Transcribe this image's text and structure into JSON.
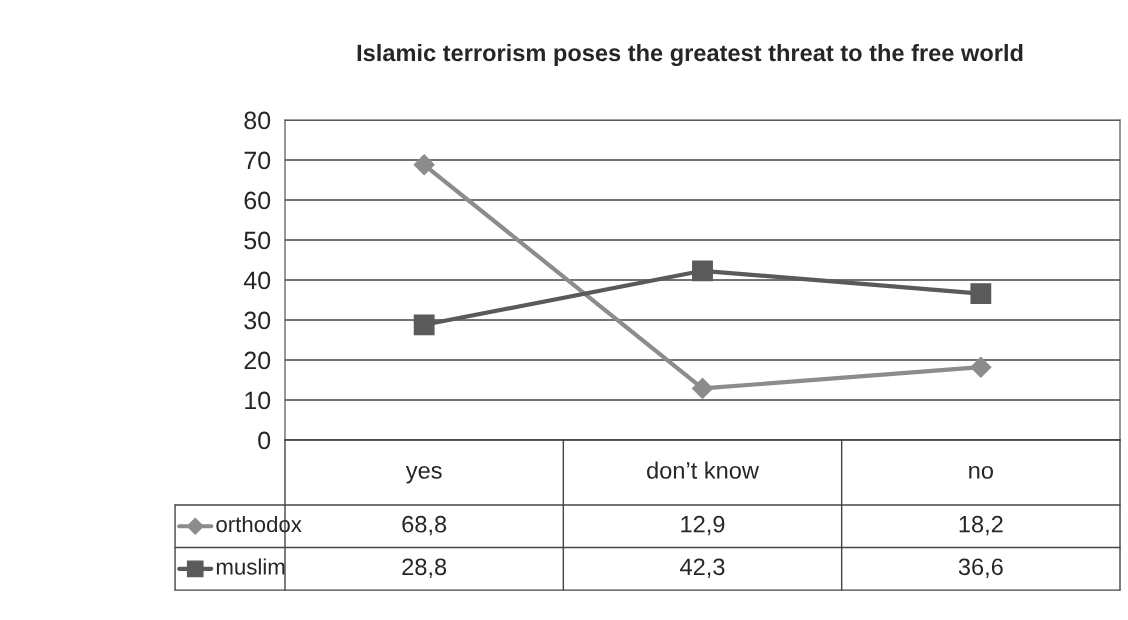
{
  "chart_data": {
    "type": "line",
    "title": "Islamic terrorism poses the greatest threat to the free world",
    "categories": [
      "yes",
      "don’t know",
      "no"
    ],
    "series": [
      {
        "name": "orthodox",
        "color": "#8c8c8c",
        "marker": "diamond",
        "values": [
          68.8,
          12.9,
          18.2
        ],
        "value_labels": [
          "68,8",
          "12,9",
          "18,2"
        ]
      },
      {
        "name": "muslim",
        "color": "#5a5a5a",
        "marker": "square",
        "values": [
          28.8,
          42.3,
          36.6
        ],
        "value_labels": [
          "28,8",
          "42,3",
          "36,6"
        ]
      }
    ],
    "ylim": [
      0,
      80
    ],
    "yticks": [
      0,
      10,
      20,
      30,
      40,
      50,
      60,
      70,
      80
    ],
    "grid": "y",
    "legend": "bottom",
    "line_style": "solid"
  }
}
